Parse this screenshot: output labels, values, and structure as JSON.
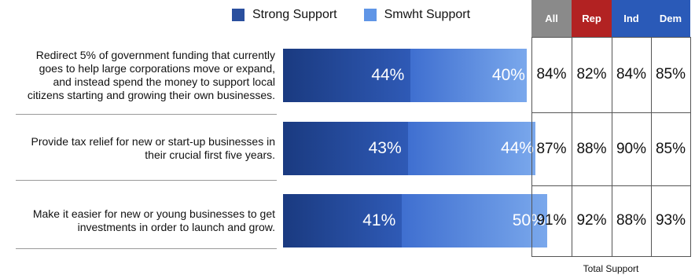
{
  "chart_data": {
    "type": "bar",
    "stacked": true,
    "orientation": "horizontal",
    "categories": [
      "Redirect 5% of government funding that currently goes to help large corporations move or expand, and instead spend the money to support local citizens starting and growing their own businesses.",
      "Provide tax relief for new or start-up businesses in their crucial first five years.",
      "Make it easier for new or young businesses to get investments in order to launch and grow."
    ],
    "category_lines": [
      [
        "Redirect 5% of government funding that currently",
        "goes to help large corporations move or expand,",
        "and instead spend the money to support local",
        "citizens starting and growing their own businesses."
      ],
      [
        "Provide tax relief for new or start-up businesses in",
        "their crucial first five years."
      ],
      [
        "Make it easier for new or young businesses to get",
        "investments in order to launch and grow."
      ]
    ],
    "series": [
      {
        "name": "Strong Support",
        "values": [
          44,
          43,
          41
        ],
        "labels": [
          "44%",
          "43%",
          "41%"
        ]
      },
      {
        "name": "Smwht Support",
        "values": [
          40,
          44,
          50
        ],
        "labels": [
          "40%",
          "44%",
          "50%"
        ]
      }
    ],
    "xlim": [
      0,
      100
    ],
    "legend_position": "top",
    "colors": {
      "strong_start": "#1a3a80",
      "strong_end": "#2f5ab6",
      "smwht_start": "#3f6fd0",
      "smwht_end": "#7aa8ec"
    }
  },
  "table": {
    "headers": [
      {
        "label": "All",
        "color": "#8a8a8a"
      },
      {
        "label": "Rep",
        "color": "#b22222"
      },
      {
        "label": "Ind",
        "color": "#2a5ab8"
      },
      {
        "label": "Dem",
        "color": "#2a5ab8"
      }
    ],
    "rows": [
      [
        "84%",
        "82%",
        "84%",
        "85%"
      ],
      [
        "87%",
        "88%",
        "90%",
        "85%"
      ],
      [
        "91%",
        "92%",
        "88%",
        "93%"
      ]
    ],
    "caption": "Total Support"
  }
}
